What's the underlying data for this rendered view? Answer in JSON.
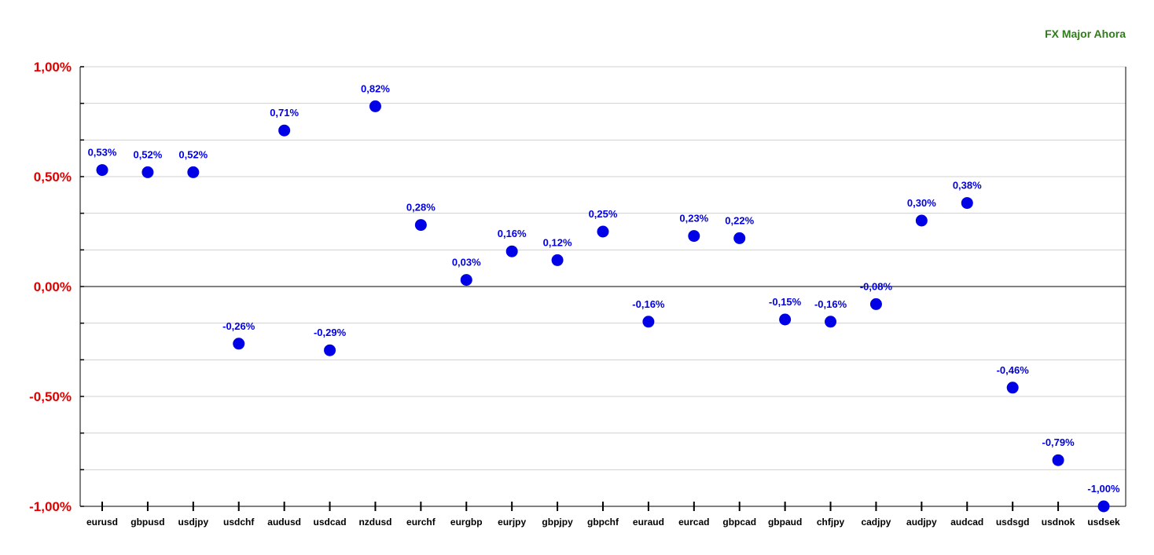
{
  "chart_data": {
    "type": "scatter",
    "title": "FX Major Ahora",
    "xlabel": "",
    "ylabel": "",
    "ylim": [
      -1.0,
      1.0
    ],
    "grid": true,
    "categories": [
      "eurusd",
      "gbpusd",
      "usdjpy",
      "usdchf",
      "audusd",
      "usdcad",
      "nzdusd",
      "eurchf",
      "eurgbp",
      "eurjpy",
      "gbpjpy",
      "gbpchf",
      "euraud",
      "eurcad",
      "gbpcad",
      "gbpaud",
      "chfjpy",
      "cadjpy",
      "audjpy",
      "audcad",
      "usdsgd",
      "usdnok",
      "usdsek"
    ],
    "values": [
      0.53,
      0.52,
      0.52,
      -0.26,
      0.71,
      -0.29,
      0.82,
      0.28,
      0.03,
      0.16,
      0.12,
      0.25,
      -0.16,
      0.23,
      0.22,
      -0.15,
      -0.16,
      -0.08,
      0.3,
      0.38,
      -0.46,
      -0.79,
      -1.0
    ],
    "data_labels": [
      "0,53%",
      "0,52%",
      "0,52%",
      "-0,26%",
      "0,71%",
      "-0,29%",
      "0,82%",
      "0,28%",
      "0,03%",
      "0,16%",
      "0,12%",
      "0,25%",
      "-0,16%",
      "0,23%",
      "0,22%",
      "-0,15%",
      "-0,16%",
      "-0,08%",
      "0,30%",
      "0,38%",
      "-0,46%",
      "-0,79%",
      "-1,00%"
    ],
    "yticks": [
      1.0,
      0.5,
      0.0,
      -0.5,
      -1.0
    ],
    "ytick_labels": [
      "1,00%",
      "0,50%",
      "0,00%",
      "-0,50%",
      "-1,00%"
    ],
    "colors": {
      "marker": "#0000e6",
      "data_label": "#0000e6",
      "ytick_label": "#e00000",
      "title": "#2e7d18",
      "grid": "#d0d0d0",
      "axis": "#000000"
    }
  }
}
